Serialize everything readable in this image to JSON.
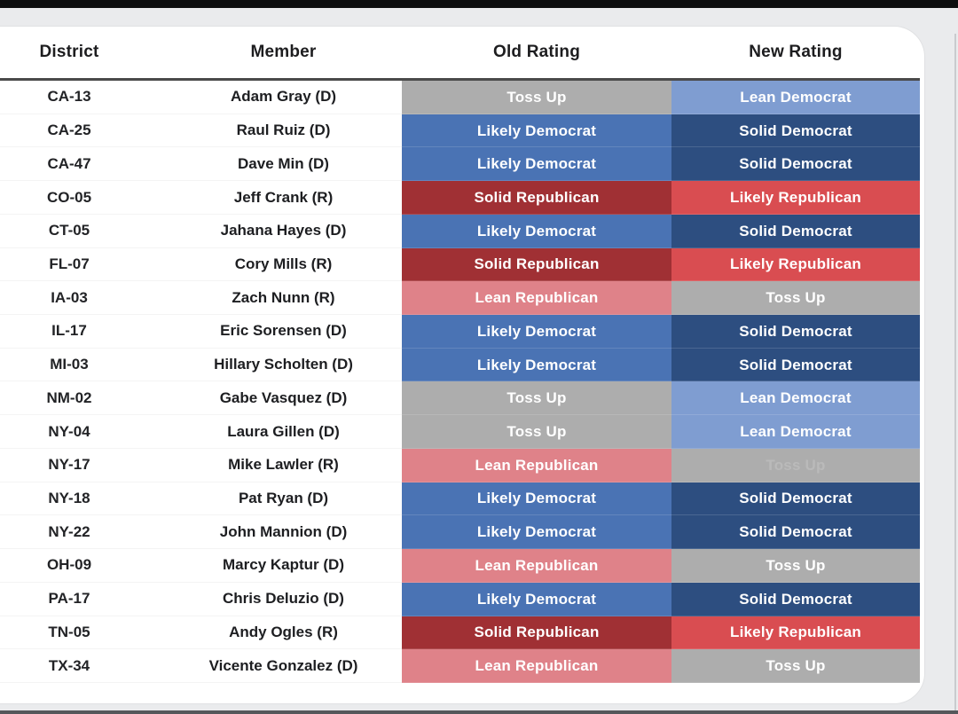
{
  "table": {
    "columns": {
      "district": "District",
      "member": "Member",
      "old_rating": "Old Rating",
      "new_rating": "New Rating"
    },
    "rows": [
      {
        "district": "CA-13",
        "member": "Adam Gray (D)",
        "old": "Toss Up",
        "new": "Lean Democrat"
      },
      {
        "district": "CA-25",
        "member": "Raul Ruiz (D)",
        "old": "Likely Democrat",
        "new": "Solid Democrat"
      },
      {
        "district": "CA-47",
        "member": "Dave Min (D)",
        "old": "Likely Democrat",
        "new": "Solid Democrat"
      },
      {
        "district": "CO-05",
        "member": "Jeff Crank (R)",
        "old": "Solid Republican",
        "new": "Likely Republican"
      },
      {
        "district": "CT-05",
        "member": "Jahana Hayes (D)",
        "old": "Likely Democrat",
        "new": "Solid Democrat"
      },
      {
        "district": "FL-07",
        "member": "Cory Mills (R)",
        "old": "Solid Republican",
        "new": "Likely Republican"
      },
      {
        "district": "IA-03",
        "member": "Zach Nunn (R)",
        "old": "Lean Republican",
        "new": "Toss Up"
      },
      {
        "district": "IL-17",
        "member": "Eric Sorensen (D)",
        "old": "Likely Democrat",
        "new": "Solid Democrat"
      },
      {
        "district": "MI-03",
        "member": "Hillary Scholten (D)",
        "old": "Likely Democrat",
        "new": "Solid Democrat"
      },
      {
        "district": "NM-02",
        "member": "Gabe Vasquez (D)",
        "old": "Toss Up",
        "new": "Lean Democrat"
      },
      {
        "district": "NY-04",
        "member": "Laura Gillen (D)",
        "old": "Toss Up",
        "new": "Lean Democrat"
      },
      {
        "district": "NY-17",
        "member": "Mike Lawler (R)",
        "old": "Lean Republican",
        "new": "Toss Up",
        "new_ghost": true
      },
      {
        "district": "NY-18",
        "member": "Pat Ryan (D)",
        "old": "Likely Democrat",
        "new": "Solid Democrat"
      },
      {
        "district": "NY-22",
        "member": "John Mannion (D)",
        "old": "Likely Democrat",
        "new": "Solid Democrat"
      },
      {
        "district": "OH-09",
        "member": "Marcy Kaptur (D)",
        "old": "Lean Republican",
        "new": "Toss Up"
      },
      {
        "district": "PA-17",
        "member": "Chris Deluzio (D)",
        "old": "Likely Democrat",
        "new": "Solid Democrat"
      },
      {
        "district": "TN-05",
        "member": "Andy Ogles (R)",
        "old": "Solid Republican",
        "new": "Likely Republican"
      },
      {
        "district": "TX-34",
        "member": "Vicente Gonzalez (D)",
        "old": "Lean Republican",
        "new": "Toss Up"
      }
    ]
  },
  "rating_colors": {
    "Toss Up": "#adadad",
    "Lean Democrat": "#7f9dd1",
    "Likely Democrat": "#4a73b4",
    "Solid Democrat": "#2d4e80",
    "Lean Republican": "#df8289",
    "Likely Republican": "#d94d51",
    "Solid Republican": "#a03034"
  }
}
